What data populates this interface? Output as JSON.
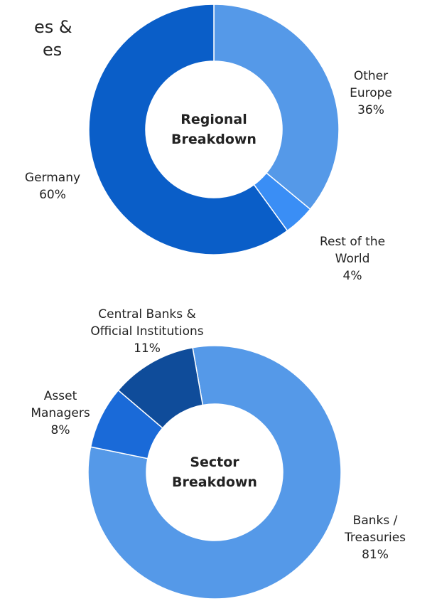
{
  "fragment": [
    "es &",
    "es"
  ],
  "chart_data": [
    {
      "type": "donut",
      "title": "Regional Breakdown",
      "categories": [
        "Other Europe",
        "Rest of the World",
        "Germany"
      ],
      "values": [
        36,
        4,
        60
      ],
      "value_labels": [
        "36%",
        "4%",
        "60%"
      ],
      "colors": [
        "#5599e8",
        "#3a8ef5",
        "#0a5ec8"
      ]
    },
    {
      "type": "donut",
      "title": "Sector Breakdown",
      "categories": [
        "Banks / Treasuries",
        "Asset Managers",
        "Central Banks & Official Institutions"
      ],
      "values": [
        81,
        8,
        11
      ],
      "value_labels": [
        "81%",
        "8%",
        "11%"
      ],
      "colors": [
        "#5599e8",
        "#1a6ad8",
        "#0f4c9a"
      ]
    }
  ]
}
